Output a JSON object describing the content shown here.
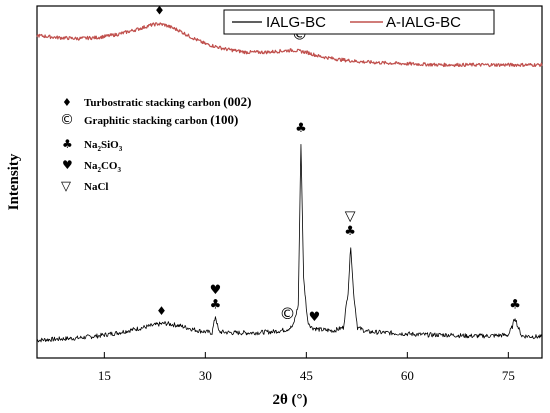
{
  "chart_data": {
    "type": "line",
    "xlabel": "2θ (°)",
    "ylabel": "Intensity",
    "xlim": [
      5,
      80
    ],
    "x_ticks": [
      "15",
      "30",
      "45",
      "60",
      "75"
    ],
    "x_tick_values": [
      15,
      30,
      45,
      60,
      75
    ],
    "y_ticks_shown": false,
    "grid": false,
    "legend_position": "top-right",
    "series": [
      {
        "name": "IALG-BC",
        "color": "#000000",
        "x": [
          5,
          8,
          11,
          14,
          17,
          20,
          23,
          24,
          26,
          29,
          31,
          31.5,
          32,
          34,
          37,
          40,
          42,
          43,
          43.8,
          44.2,
          44.6,
          45.2,
          45.8,
          47,
          49,
          50.5,
          51.2,
          51.6,
          52,
          52.6,
          54,
          57,
          60,
          63,
          66,
          69,
          72,
          75,
          75.6,
          76,
          76.4,
          77,
          80
        ],
        "y": [
          12,
          13,
          14,
          16,
          19,
          23,
          27,
          28,
          26,
          21,
          19,
          35,
          20,
          19,
          19,
          20,
          22,
          25,
          45,
          200,
          70,
          30,
          24,
          22,
          21,
          24,
          58,
          102,
          58,
          24,
          20,
          19,
          18,
          17,
          17,
          16,
          16,
          17,
          25,
          34,
          25,
          16,
          15
        ]
      },
      {
        "name": "A-IALG-BC",
        "color": "#c0504d",
        "x": [
          5,
          8,
          11,
          14,
          17,
          20,
          22,
          23,
          24,
          26,
          28,
          30,
          33,
          36,
          39,
          41,
          43,
          45,
          47,
          50,
          53,
          56,
          60,
          65,
          70,
          75,
          80
        ],
        "y": [
          302,
          300,
          299,
          300,
          303,
          308,
          312,
          313,
          312,
          307,
          300,
          294,
          289,
          286,
          286,
          287,
          288,
          286,
          282,
          279,
          277,
          276,
          275,
          274,
          274,
          274,
          274
        ]
      }
    ],
    "y_range": [
      -5,
      330
    ],
    "key": [
      {
        "symbol": "♦",
        "label": "Turbostratic stacking carbon",
        "plane": "(002)"
      },
      {
        "symbol": "©",
        "label": "Graphitic stacking carbon",
        "plane": "(100)"
      },
      {
        "symbol": "♣",
        "label": "Na",
        "sub1": "2",
        "label2": "SiO",
        "sub2": "3"
      },
      {
        "symbol": "♥",
        "label": "Na",
        "sub1": "2",
        "label2": "CO",
        "sub2": "3"
      },
      {
        "symbol": "▽",
        "label": "NaCl"
      }
    ],
    "annotations": [
      {
        "symbol": "♦",
        "x": 23.5,
        "y": 36
      },
      {
        "symbol": "♥",
        "x": 31.5,
        "y": 56
      },
      {
        "symbol": "♣",
        "x": 31.5,
        "y": 42
      },
      {
        "symbol": "©",
        "x": 42.2,
        "y": 32
      },
      {
        "symbol": "♣",
        "x": 44.2,
        "y": 210
      },
      {
        "symbol": "♥",
        "x": 46.2,
        "y": 30
      },
      {
        "symbol": "▽",
        "x": 51.5,
        "y": 126
      },
      {
        "symbol": "♣",
        "x": 51.5,
        "y": 112
      },
      {
        "symbol": "♣",
        "x": 76,
        "y": 42
      },
      {
        "symbol": "♦",
        "x": 23.2,
        "y": 322
      },
      {
        "symbol": "©",
        "x": 44,
        "y": 298
      }
    ]
  }
}
